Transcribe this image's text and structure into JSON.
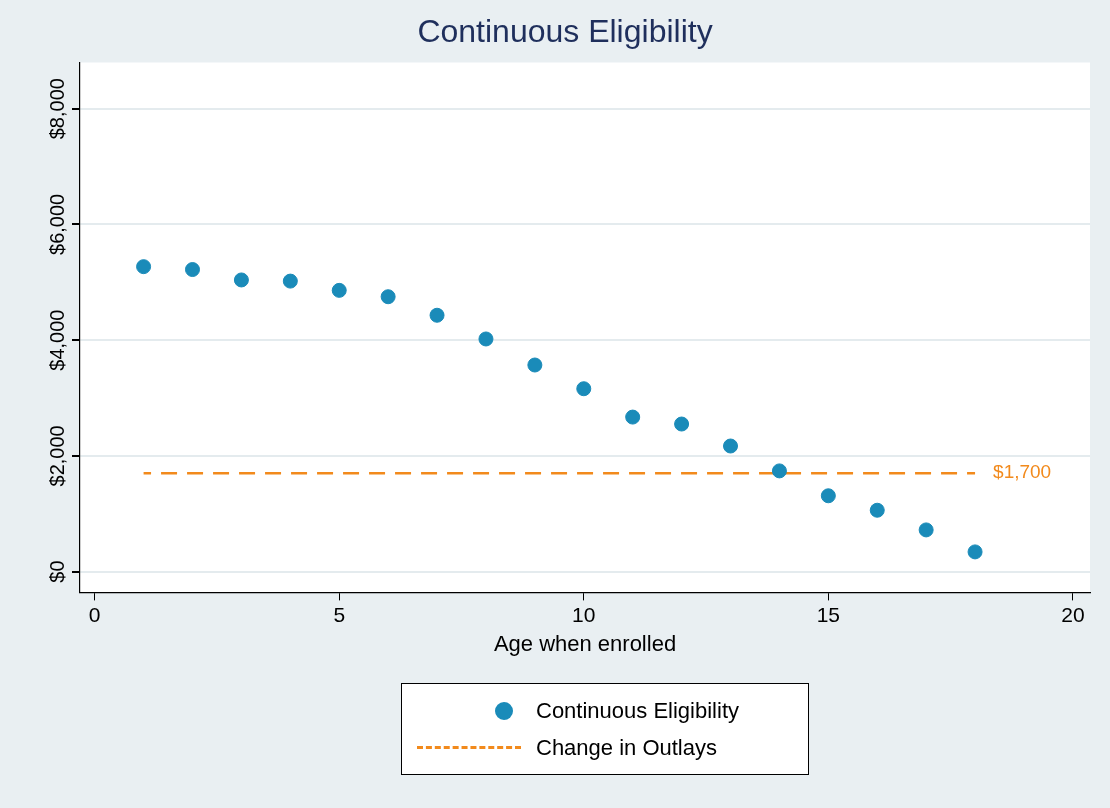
{
  "chart_data": {
    "type": "scatter",
    "title": "Continuous Eligibility",
    "xlabel": "Age when enrolled",
    "x": [
      1,
      2,
      3,
      4,
      5,
      6,
      7,
      8,
      9,
      10,
      11,
      12,
      13,
      14,
      15,
      16,
      17,
      18
    ],
    "series": [
      {
        "name": "Continuous Eligibility",
        "color": "#1a8bb9",
        "values": [
          5270,
          5220,
          5040,
          5020,
          4860,
          4750,
          4430,
          4020,
          3570,
          3160,
          2670,
          2550,
          2170,
          1740,
          1310,
          1060,
          720,
          340
        ]
      },
      {
        "name": "Change in Outlays",
        "type": "line",
        "color": "#f28a1c",
        "x": [
          1,
          18
        ],
        "values": [
          1700,
          1700
        ],
        "line_style": "dashed",
        "marker": "none"
      }
    ],
    "marker": "circle",
    "xlim": [
      -0.3,
      20.35
    ],
    "ylim": [
      -360,
      8800
    ],
    "xticks": [
      0,
      5,
      10,
      15,
      20
    ],
    "yticks": [
      {
        "value": 0,
        "label": "$0"
      },
      {
        "value": 2000,
        "label": "$2,000"
      },
      {
        "value": 4000,
        "label": "$4,000"
      },
      {
        "value": 6000,
        "label": "$6,000"
      },
      {
        "value": 8000,
        "label": "$8,000"
      }
    ],
    "grid": "y",
    "legend": "bottom",
    "annotations": [
      {
        "text": "$1,700",
        "x": 18,
        "y": 1700
      }
    ]
  }
}
